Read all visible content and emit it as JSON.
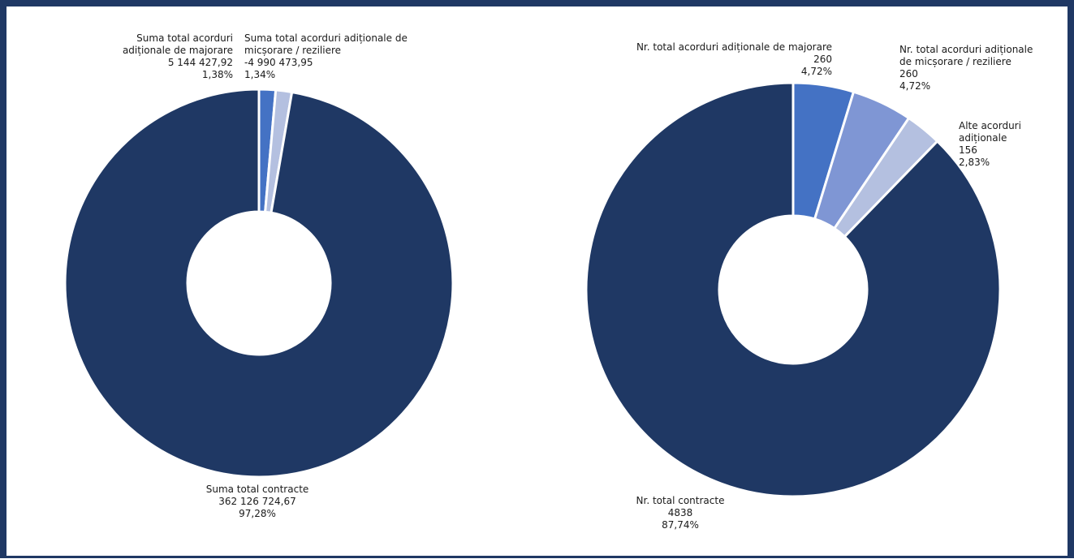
{
  "chart_data": [
    {
      "type": "pie",
      "variant": "donut",
      "title": "",
      "slices": [
        {
          "label": "Suma total contracte",
          "value": 362126724.67,
          "value_text": "362 126 724,67",
          "percent": 97.28,
          "percent_text": "97,28%",
          "color": "#1f3864"
        },
        {
          "label": "Suma total acorduri adiționale de majorare",
          "value": 5144427.92,
          "value_text": "5 144 427,92",
          "percent": 1.38,
          "percent_text": "1,38%",
          "color": "#4472c4"
        },
        {
          "label": "Suma total acorduri adiționale de micșorare / reziliere",
          "value": -4990473.95,
          "value_text": "-4 990 473,95",
          "percent": 1.34,
          "percent_text": "1,34%",
          "color": "#b4c0e0"
        }
      ],
      "labels": [
        {
          "lines": [
            "Suma total acorduri",
            "adiționale de majorare",
            "5 144 427,92"
          ],
          "pct": "1,38%"
        },
        {
          "lines": [
            "Suma total acorduri adiționale de",
            "micșorare / reziliere",
            "-4 990 473,95"
          ],
          "pct": "1,34%"
        },
        {
          "lines": [
            "Suma total contracte",
            "362 126 724,67"
          ],
          "pct": "97,28%"
        }
      ]
    },
    {
      "type": "pie",
      "variant": "donut",
      "title": "",
      "slices": [
        {
          "label": "Nr. total contracte",
          "value": 4838,
          "percent": 87.74,
          "percent_text": "87,74%",
          "color": "#1f3864"
        },
        {
          "label": "Nr. total acorduri adiționale de majorare",
          "value": 260,
          "percent": 4.72,
          "percent_text": "4,72%",
          "color": "#4472c4"
        },
        {
          "label": "Nr. total acorduri adiționale de micșorare / reziliere",
          "value": 260,
          "percent": 4.72,
          "percent_text": "4,72%",
          "color": "#7f96d4"
        },
        {
          "label": "Alte acorduri adiționale",
          "value": 156,
          "percent": 2.83,
          "percent_text": "2,83%",
          "color": "#b4c0e0"
        }
      ],
      "labels": [
        {
          "lines": [
            "Nr. total acorduri adiționale de majorare",
            "260"
          ],
          "pct": "4,72%"
        },
        {
          "lines": [
            "Nr. total acorduri adiționale",
            "de micșorare / reziliere",
            "260"
          ],
          "pct": "4,72%"
        },
        {
          "lines": [
            "Alte acorduri",
            "adiționale",
            "156"
          ],
          "pct": "2,83%"
        },
        {
          "lines": [
            "Nr. total contracte",
            "4838"
          ],
          "pct": "87,74%"
        }
      ]
    }
  ]
}
